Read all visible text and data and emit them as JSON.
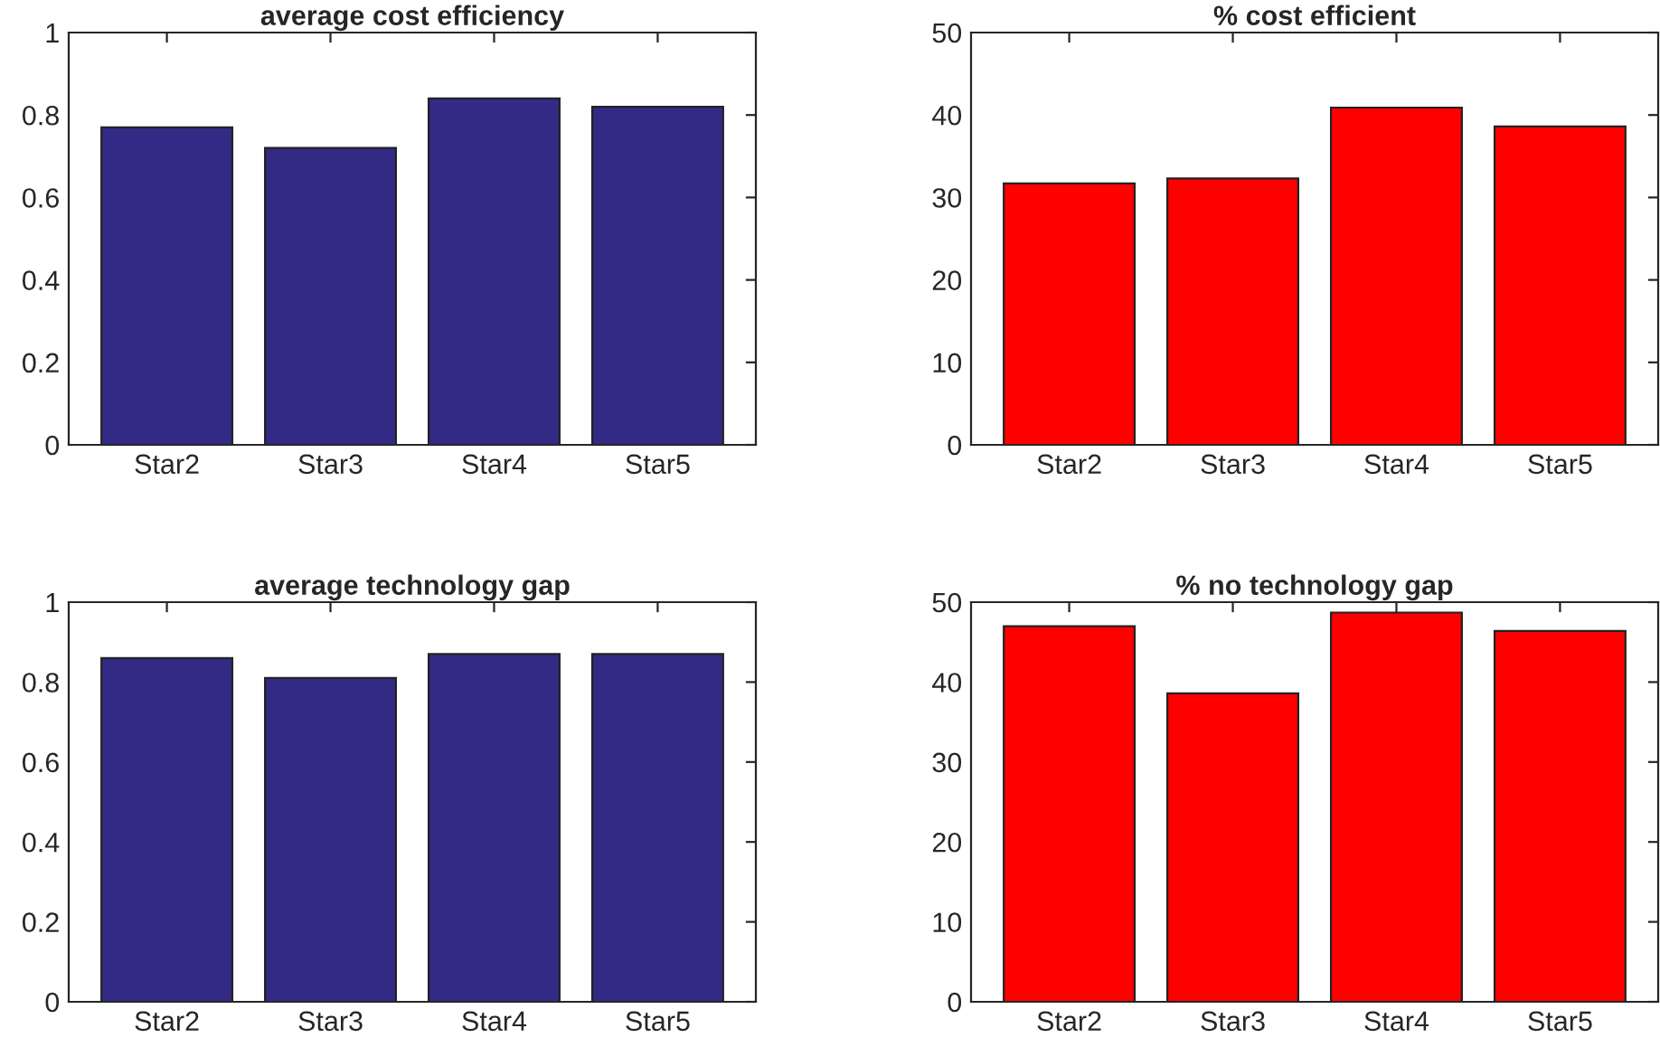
{
  "chart_data": [
    {
      "type": "bar",
      "title": "average cost efficiency",
      "categories": [
        "Star2",
        "Star3",
        "Star4",
        "Star5"
      ],
      "values": [
        0.77,
        0.72,
        0.84,
        0.82
      ],
      "color": "#332a85",
      "ylim": [
        0,
        1
      ],
      "yticks": [
        0,
        0.2,
        0.4,
        0.6,
        0.8,
        1
      ]
    },
    {
      "type": "bar",
      "title": "% cost efficient",
      "categories": [
        "Star2",
        "Star3",
        "Star4",
        "Star5"
      ],
      "values": [
        31.7,
        32.3,
        40.9,
        38.6
      ],
      "color": "#ff0000",
      "ylim": [
        0,
        50
      ],
      "yticks": [
        0,
        10,
        20,
        30,
        40,
        50
      ]
    },
    {
      "type": "bar",
      "title": "average technology gap",
      "categories": [
        "Star2",
        "Star3",
        "Star4",
        "Star5"
      ],
      "values": [
        0.86,
        0.81,
        0.87,
        0.87
      ],
      "color": "#332a85",
      "ylim": [
        0,
        1
      ],
      "yticks": [
        0,
        0.2,
        0.4,
        0.6,
        0.8,
        1
      ]
    },
    {
      "type": "bar",
      "title": "% no technology gap",
      "categories": [
        "Star2",
        "Star3",
        "Star4",
        "Star5"
      ],
      "values": [
        47.0,
        38.6,
        48.7,
        46.4
      ],
      "color": "#ff0000",
      "ylim": [
        0,
        50
      ],
      "yticks": [
        0,
        10,
        20,
        30,
        40,
        50
      ]
    }
  ]
}
